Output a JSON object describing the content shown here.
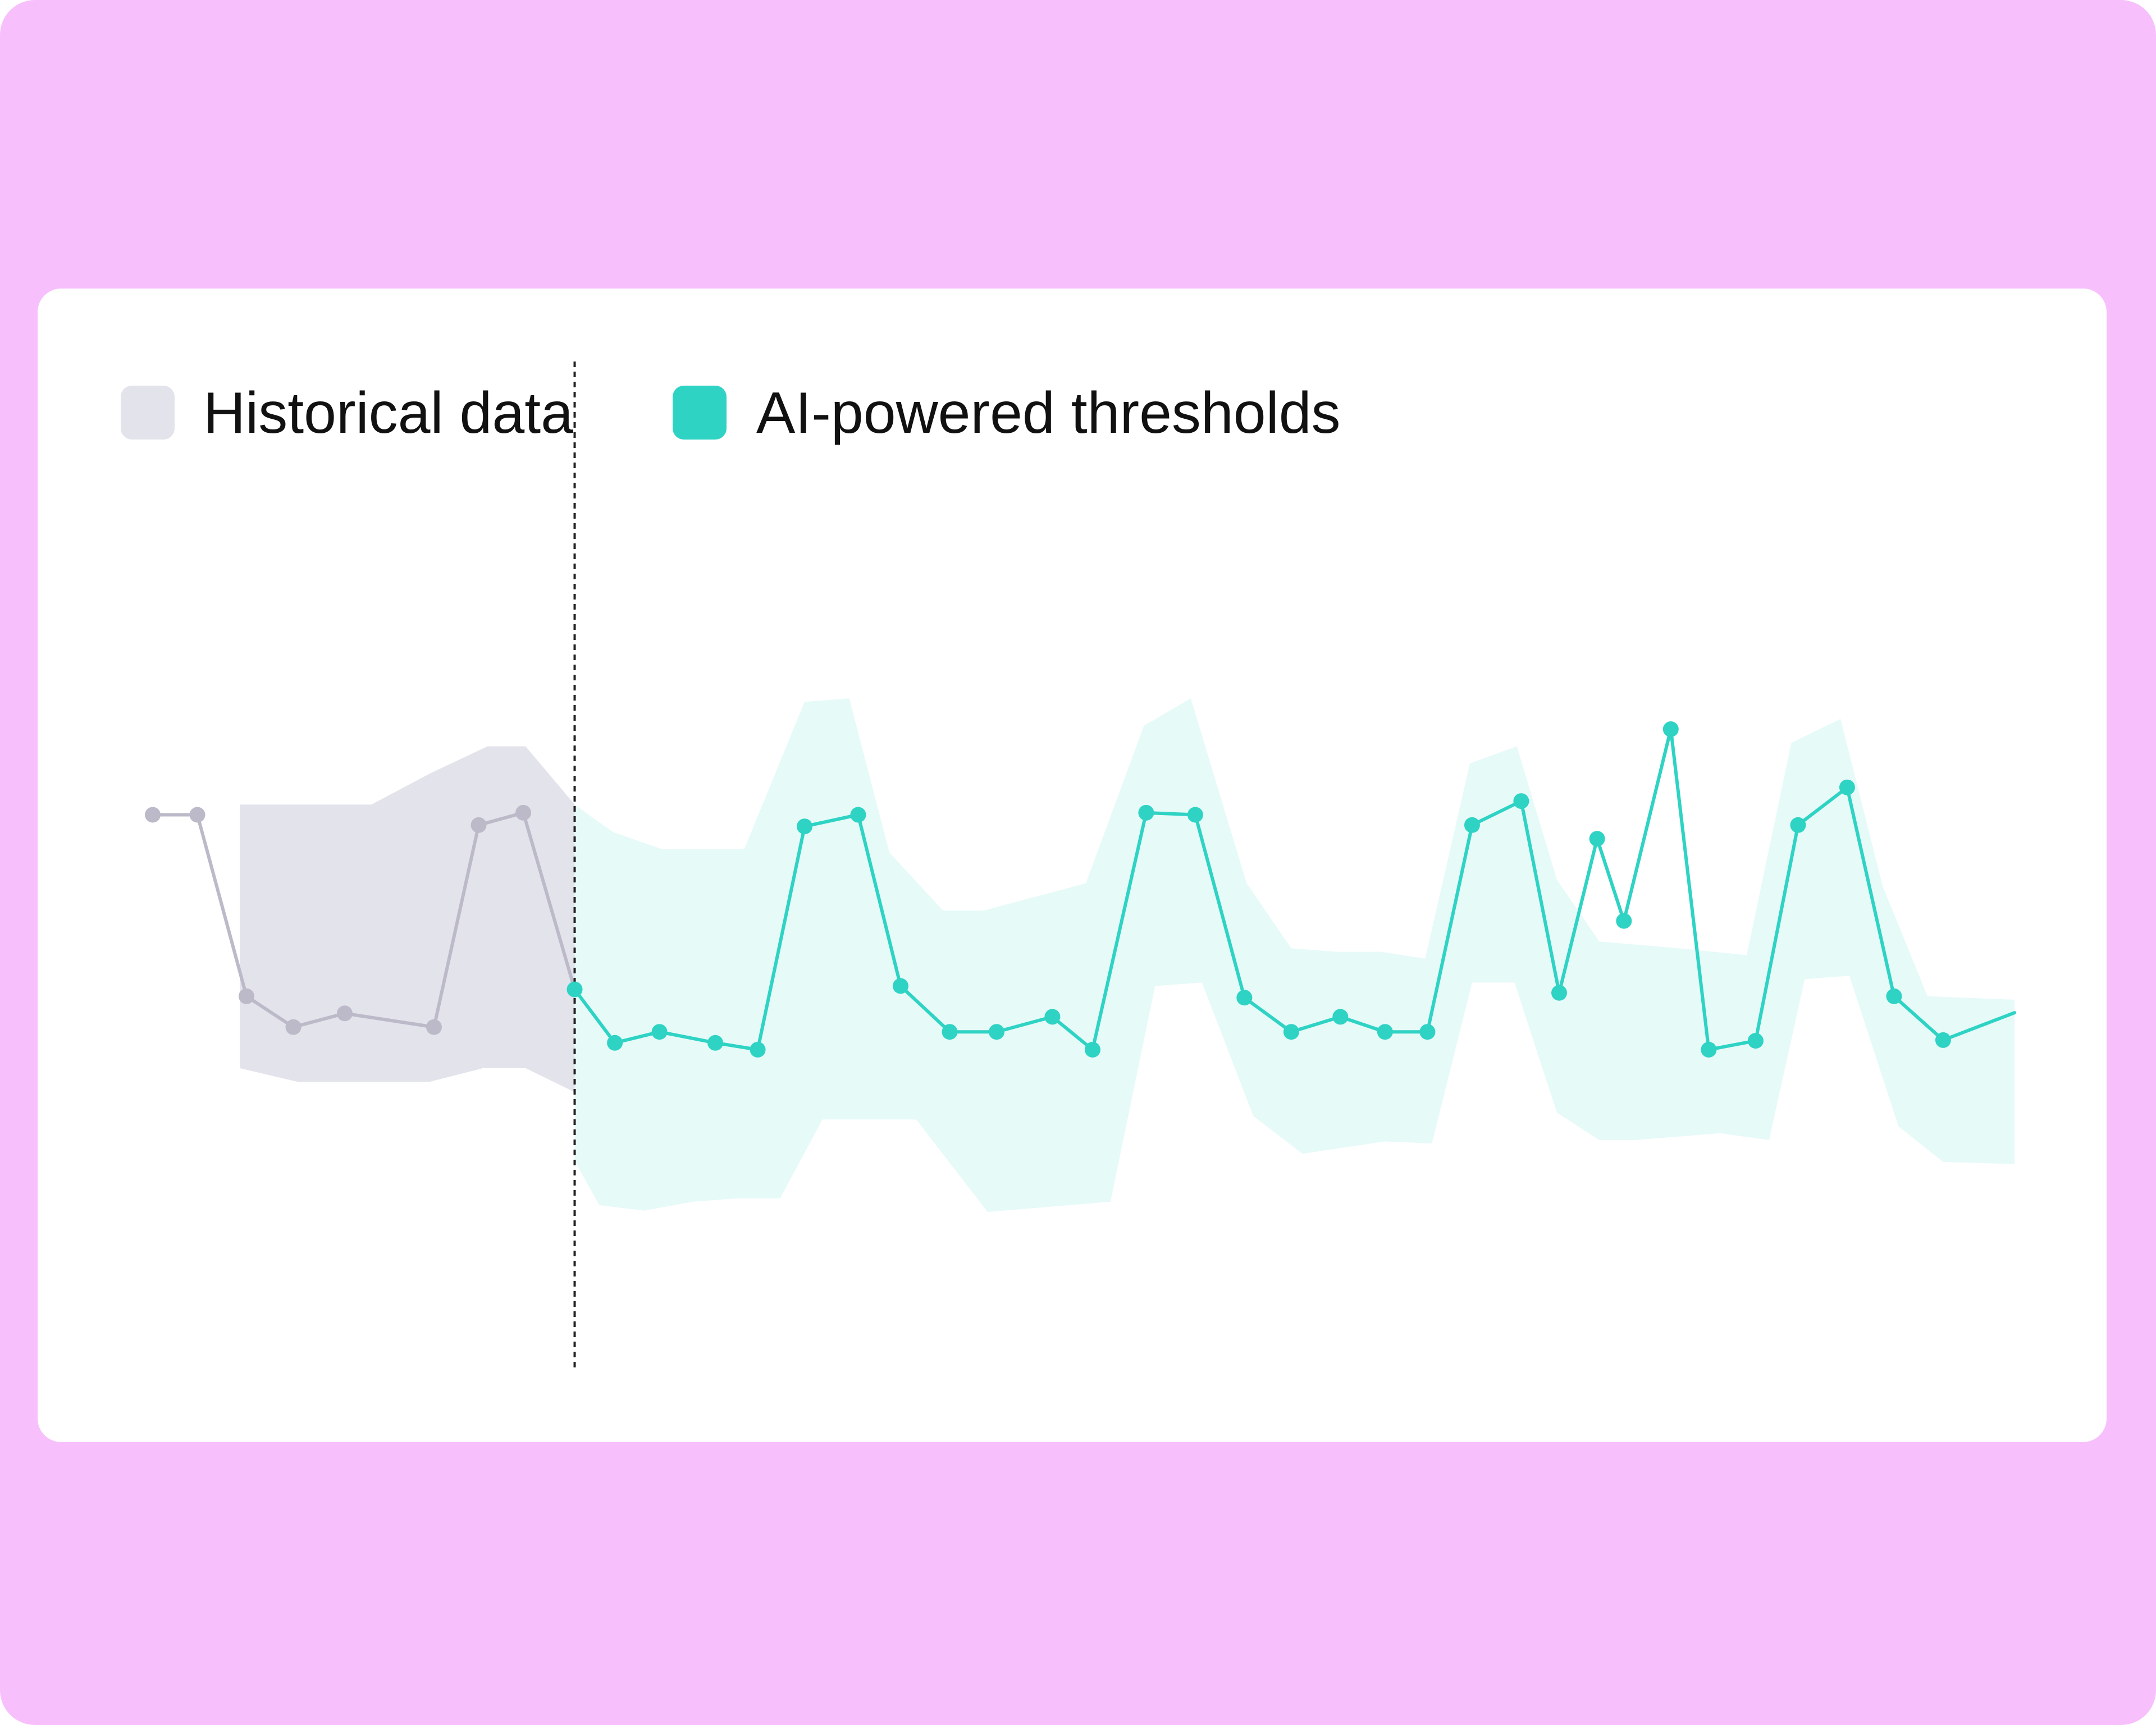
{
  "chart_data": {
    "type": "line",
    "title": "",
    "xlabel": "",
    "ylabel": "",
    "grid": false,
    "legend": {
      "placement": "top-left",
      "items": [
        {
          "label": "Historical data",
          "color": "#e3e3eb"
        },
        {
          "label": "AI-powered thresholds",
          "color": "#2ed3c4"
        }
      ]
    },
    "xlim": [
      0,
      42
    ],
    "ylim": [
      0,
      100
    ],
    "divider_x": 9.45,
    "historical": {
      "line_color": "#bcbac9",
      "band_color": "#e3e3eb",
      "points": [
        [
          0,
          62.5
        ],
        [
          1,
          62.5
        ],
        [
          2.1,
          36
        ],
        [
          3.15,
          31.5
        ],
        [
          4.3,
          33.5
        ],
        [
          6.3,
          31.5
        ],
        [
          7.3,
          61
        ],
        [
          8.3,
          62.8
        ],
        [
          9.45,
          37
        ]
      ],
      "band_upper": [
        [
          1.95,
          64
        ],
        [
          4.9,
          64
        ],
        [
          6.2,
          68.5
        ],
        [
          7.5,
          72.5
        ],
        [
          8.35,
          72.5
        ],
        [
          9.45,
          64
        ]
      ],
      "band_lower": [
        [
          9.45,
          22
        ],
        [
          8.35,
          25.5
        ],
        [
          7.4,
          25.5
        ],
        [
          6.2,
          23.5
        ],
        [
          3.25,
          23.5
        ],
        [
          1.95,
          25.5
        ]
      ]
    },
    "forecast": {
      "line_color": "#2ed3c4",
      "band_color": "#e6faf8",
      "warning_color": "#fac04c",
      "alert_color": "#ee5555",
      "points": [
        [
          9.45,
          37
        ],
        [
          10.35,
          29.2
        ],
        [
          11.35,
          30.8
        ],
        [
          12.6,
          29.2
        ],
        [
          13.55,
          28.2
        ],
        [
          14.6,
          60.8
        ],
        [
          15.8,
          62.5
        ],
        [
          16.75,
          37.5
        ],
        [
          17.85,
          30.8
        ],
        [
          18.9,
          30.8
        ],
        [
          20.15,
          33
        ],
        [
          21.05,
          28.2
        ],
        [
          22.25,
          62.8
        ],
        [
          23.35,
          62.5
        ],
        [
          24.45,
          35.8
        ],
        [
          25.5,
          30.8
        ],
        [
          26.6,
          33
        ],
        [
          27.6,
          30.8
        ],
        [
          28.55,
          30.8
        ],
        [
          29.55,
          61
        ],
        [
          30.65,
          64.5
        ],
        [
          31.5,
          36.5
        ],
        [
          32.35,
          59
        ],
        [
          32.95,
          47
        ],
        [
          34,
          75
        ],
        [
          34.85,
          28.2
        ],
        [
          35.9,
          29.5
        ],
        [
          36.85,
          61
        ],
        [
          37.95,
          66.5
        ],
        [
          39,
          36
        ],
        [
          40.1,
          29.6
        ],
        [
          41.7,
          33.6
        ]
      ],
      "warning_segments": [
        [
          31,
          33
        ]
      ],
      "alert_segments": [
        [
          33,
          35
        ]
      ],
      "warning_points": [
        21,
        22
      ],
      "alert_points": [
        23
      ],
      "band_upper": [
        [
          9.45,
          64
        ],
        [
          10.3,
          60
        ],
        [
          11.4,
          57.5
        ],
        [
          13.25,
          57.5
        ],
        [
          14.6,
          79
        ],
        [
          15.6,
          79.5
        ],
        [
          16.5,
          57
        ],
        [
          17.7,
          48.5
        ],
        [
          18.6,
          48.5
        ],
        [
          20.9,
          52.5
        ],
        [
          22.2,
          75.5
        ],
        [
          23.25,
          79.5
        ],
        [
          24.5,
          52.5
        ],
        [
          25.5,
          43
        ],
        [
          26.5,
          42.5
        ],
        [
          27.5,
          42.5
        ],
        [
          28.5,
          41.5
        ],
        [
          29.5,
          70
        ],
        [
          30.55,
          72.5
        ],
        [
          31.45,
          53
        ],
        [
          32.4,
          44
        ],
        [
          34.2,
          43
        ],
        [
          35.7,
          42
        ],
        [
          36.7,
          73
        ],
        [
          37.8,
          76.5
        ],
        [
          38.75,
          52
        ],
        [
          39.75,
          36
        ],
        [
          41.7,
          35.5
        ]
      ],
      "band_lower": [
        [
          41.7,
          11.5
        ],
        [
          40.1,
          11.8
        ],
        [
          39.1,
          17
        ],
        [
          38,
          39
        ],
        [
          37,
          38.5
        ],
        [
          36.2,
          15
        ],
        [
          35.1,
          16
        ],
        [
          33.2,
          15
        ],
        [
          32.4,
          15
        ],
        [
          31.45,
          19
        ],
        [
          30.5,
          38
        ],
        [
          29.55,
          38
        ],
        [
          28.65,
          14.5
        ],
        [
          27.6,
          14.8
        ],
        [
          25.75,
          13
        ],
        [
          24.65,
          18.5
        ],
        [
          23.5,
          38
        ],
        [
          22.45,
          37.5
        ],
        [
          21.45,
          6
        ],
        [
          19.6,
          5
        ],
        [
          18.7,
          4.5
        ],
        [
          17.1,
          18
        ],
        [
          16,
          18
        ],
        [
          15,
          18
        ],
        [
          14.05,
          6.5
        ],
        [
          13.1,
          6.5
        ],
        [
          12.1,
          6
        ],
        [
          11,
          4.7
        ],
        [
          10,
          5.5
        ],
        [
          9.45,
          12
        ]
      ]
    }
  }
}
